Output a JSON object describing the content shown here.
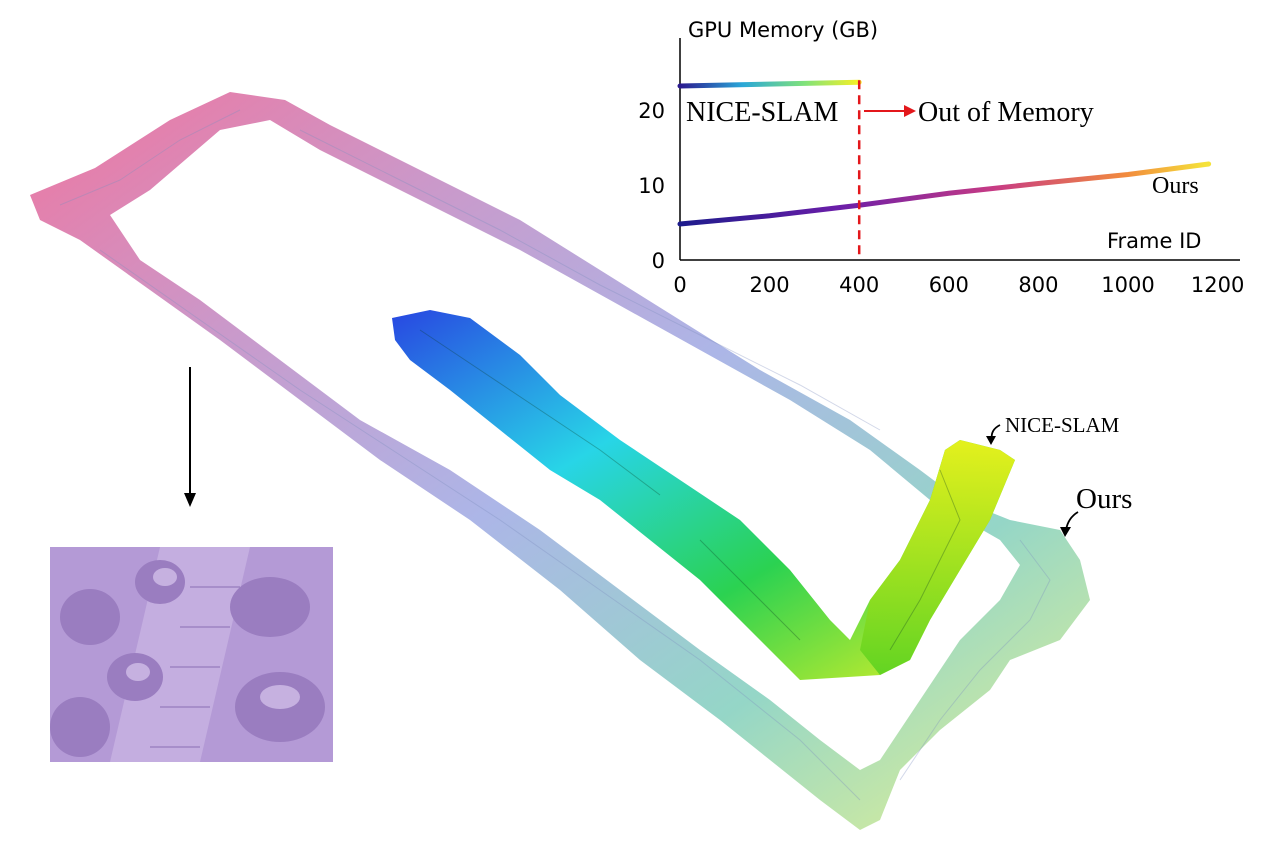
{
  "chart_data": {
    "type": "line",
    "title": "",
    "ylabel": "GPU Memory (GB)",
    "xlabel": "Frame ID",
    "xlim": [
      0,
      1250
    ],
    "ylim": [
      0,
      30
    ],
    "x_ticks": [
      0,
      200,
      400,
      600,
      800,
      1000,
      1200
    ],
    "y_ticks": [
      0,
      10,
      20
    ],
    "grid": false,
    "legend": "none",
    "series": [
      {
        "name": "NICE-SLAM",
        "x": [
          0,
          400
        ],
        "y": [
          23.2,
          23.7
        ],
        "colormap": "viridis-like"
      },
      {
        "name": "Ours",
        "x": [
          0,
          200,
          400,
          600,
          800,
          1000,
          1180
        ],
        "y": [
          4.8,
          5.9,
          7.3,
          8.9,
          10.2,
          11.4,
          12.8
        ],
        "colormap": "plasma-like"
      }
    ],
    "annotations": {
      "cutoff_x": 400,
      "out_of_memory": "Out of Memory",
      "nice_slam_label": "NICE-SLAM",
      "ours_label": "Ours"
    },
    "colors": {
      "cutoff": "#e3171b",
      "arrow": "#e3171b",
      "axis": "#000000"
    }
  },
  "scene_labels": {
    "nice_slam": "NICE-SLAM",
    "ours": "Ours"
  }
}
